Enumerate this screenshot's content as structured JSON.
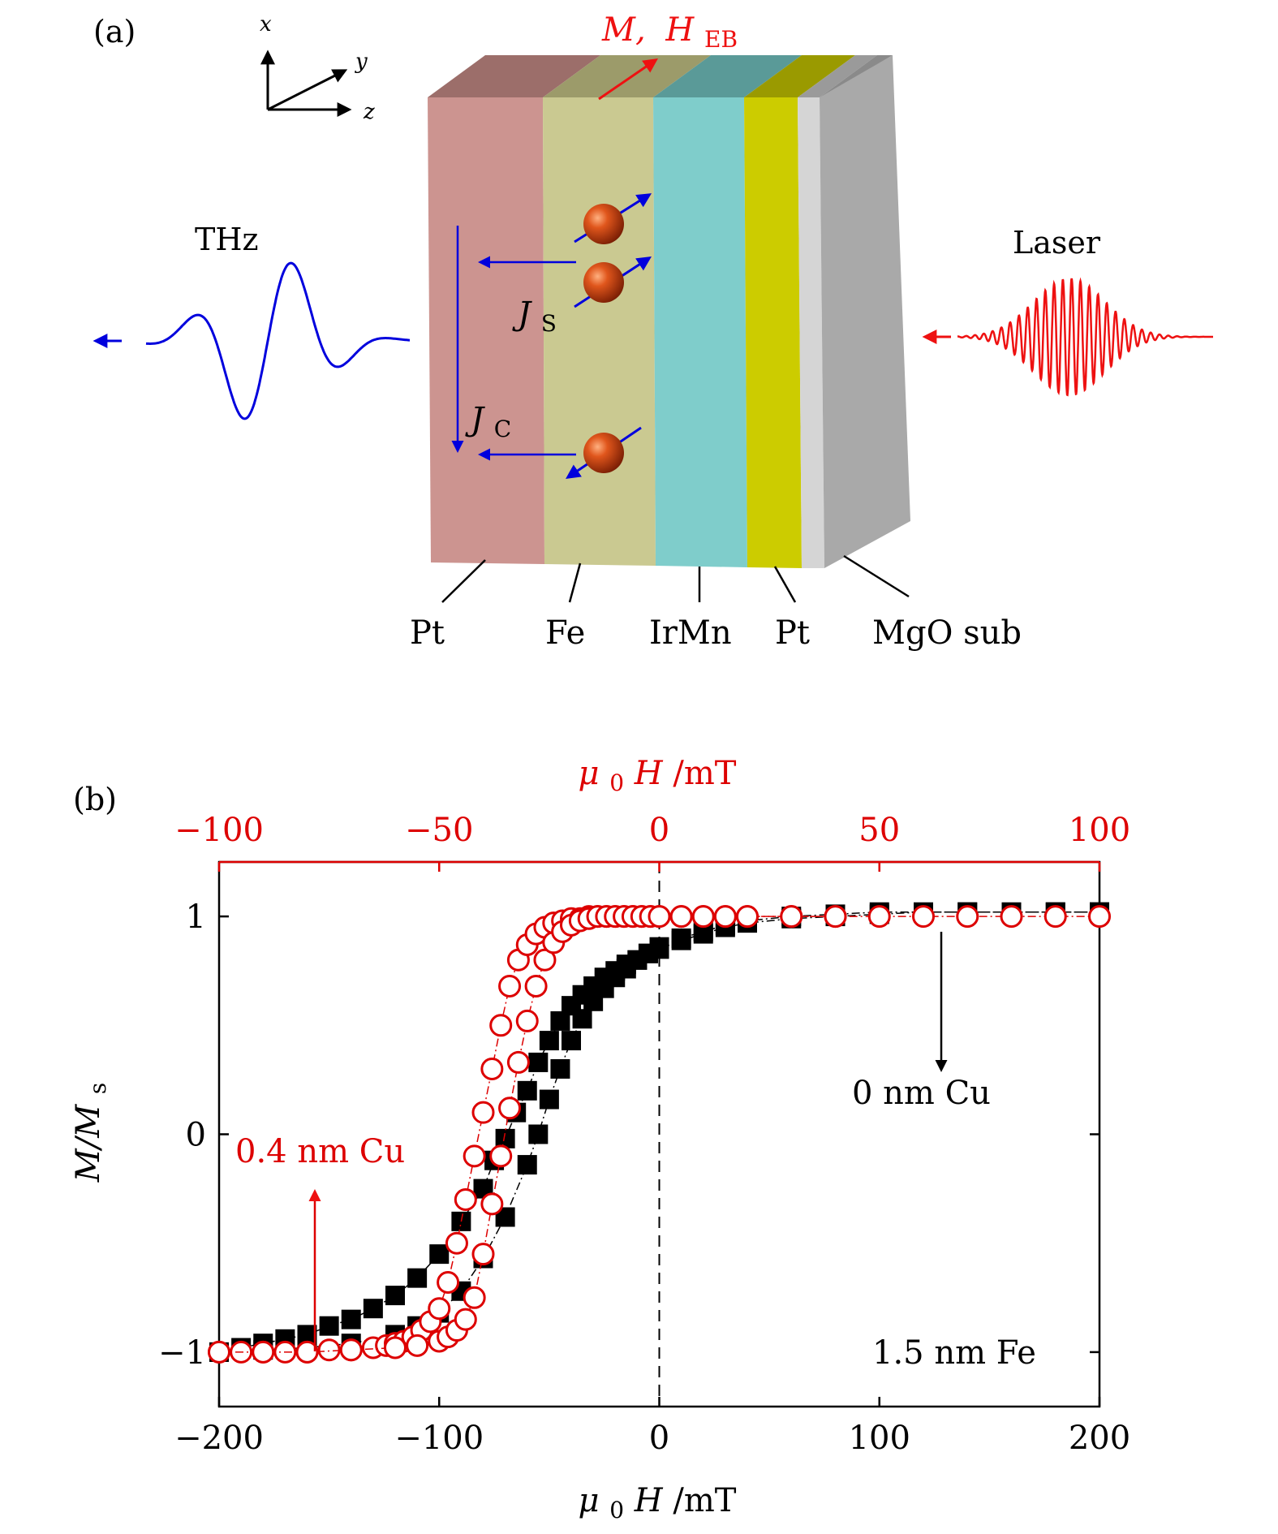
{
  "panel_a": {
    "label": "(a)",
    "axes": {
      "x": "x",
      "y": "y",
      "z": "z"
    },
    "top_label": {
      "m": "M,",
      "h": "H",
      "h_sub": "EB"
    },
    "thz_label": "THz",
    "laser_label": "Laser",
    "js_label": {
      "main": "J",
      "sub": "S"
    },
    "jc_label": {
      "main": "J",
      "sub": "C"
    },
    "layers": [
      {
        "name": "Pt",
        "color": "#cc9490"
      },
      {
        "name": "Fe",
        "color": "#cac991"
      },
      {
        "name": "IrMn",
        "color": "#7fcdcb"
      },
      {
        "name": "Pt",
        "color": "#cccc00"
      },
      {
        "name": "MgO sub",
        "color": "#a9a9a9"
      }
    ],
    "colors": {
      "thz": "#0000dd",
      "laser": "#ee1111",
      "magnetization": "#ee1111"
    }
  },
  "panel_b": {
    "label": "(b)",
    "chart_data": {
      "type": "scatter",
      "xlabel_bottom": {
        "pre": "μ",
        "sub": "0",
        "main": "H",
        "unit": "/mT"
      },
      "xlabel_top": {
        "pre": "μ",
        "sub": "0",
        "main": "H",
        "unit": "/mT"
      },
      "ylabel": {
        "main": "M/M",
        "sub": "s"
      },
      "bottom_axis": {
        "range": [
          -200,
          200
        ],
        "ticks": [
          "−200",
          "−100",
          "0",
          "100",
          "200"
        ]
      },
      "top_axis": {
        "range": [
          -100,
          100
        ],
        "ticks": [
          "−100",
          "−50",
          "0",
          "50",
          "100"
        ],
        "color": "#dd0000"
      },
      "y_axis": {
        "range": [
          -1.25,
          1.25
        ],
        "ticks": [
          "−1",
          "0",
          "1"
        ]
      },
      "annotation_fe": "1.5 nm Fe",
      "series": [
        {
          "name": "0 nm Cu",
          "axis": "bottom",
          "marker": "filled-square",
          "color": "#000000",
          "branches": [
            {
              "x": [
                -200,
                -190,
                -180,
                -170,
                -160,
                -150,
                -140,
                -130,
                -120,
                -110,
                -100,
                -90,
                -80,
                -75,
                -70,
                -65,
                -60,
                -55,
                -50,
                -45,
                -40,
                -35,
                -30,
                -25,
                -20,
                -15,
                -10,
                -5,
                0,
                10,
                20,
                30,
                40,
                60,
                80,
                100,
                120,
                140,
                160,
                180,
                200
              ],
              "y": [
                -1.0,
                -0.98,
                -0.96,
                -0.94,
                -0.92,
                -0.88,
                -0.85,
                -0.8,
                -0.74,
                -0.66,
                -0.55,
                -0.4,
                -0.25,
                -0.12,
                -0.02,
                0.1,
                0.2,
                0.33,
                0.43,
                0.52,
                0.59,
                0.64,
                0.68,
                0.72,
                0.75,
                0.78,
                0.8,
                0.83,
                0.85,
                0.89,
                0.92,
                0.95,
                0.97,
                0.99,
                1.0,
                1.01,
                1.02,
                1.02,
                1.02,
                1.02,
                1.02
              ]
            },
            {
              "x": [
                -200,
                -180,
                -160,
                -140,
                -120,
                -110,
                -100,
                -90,
                -80,
                -70,
                -60,
                -55,
                -50,
                -45,
                -40,
                -35,
                -30,
                -25,
                -20,
                -15,
                -10,
                -5,
                0,
                10,
                20,
                30,
                40,
                60,
                80,
                100,
                140,
                180,
                200
              ],
              "y": [
                -1.0,
                -0.99,
                -0.98,
                -0.96,
                -0.92,
                -0.88,
                -0.82,
                -0.72,
                -0.57,
                -0.38,
                -0.14,
                0.0,
                0.16,
                0.3,
                0.43,
                0.53,
                0.61,
                0.67,
                0.72,
                0.76,
                0.8,
                0.83,
                0.86,
                0.9,
                0.93,
                0.96,
                0.98,
                1.0,
                1.01,
                1.02,
                1.02,
                1.02,
                1.02
              ]
            }
          ]
        },
        {
          "name": "0.4 nm Cu",
          "axis": "top",
          "marker": "open-circle",
          "color": "#dd0000",
          "branches": [
            {
              "x": [
                -100,
                -95,
                -90,
                -85,
                -80,
                -75,
                -70,
                -65,
                -62,
                -60,
                -58,
                -56,
                -54,
                -52,
                -50,
                -48,
                -46,
                -44,
                -42,
                -40,
                -38,
                -36,
                -34,
                -32,
                -30,
                -28,
                -26,
                -24,
                -22,
                -20,
                -18,
                -16,
                -14,
                -12,
                -10,
                -8,
                -6,
                -4,
                -2,
                0,
                5,
                10,
                15,
                20,
                30,
                40,
                50,
                60,
                70,
                80,
                90,
                100
              ],
              "y": [
                -1.0,
                -1.0,
                -1.0,
                -1.0,
                -1.0,
                -0.99,
                -0.99,
                -0.98,
                -0.97,
                -0.96,
                -0.95,
                -0.93,
                -0.9,
                -0.86,
                -0.8,
                -0.68,
                -0.5,
                -0.3,
                -0.1,
                0.1,
                0.3,
                0.5,
                0.68,
                0.8,
                0.87,
                0.92,
                0.95,
                0.97,
                0.98,
                0.99,
                0.99,
                1.0,
                1.0,
                1.0,
                1.0,
                1.0,
                1.0,
                1.0,
                1.0,
                1.0,
                1.0,
                1.0,
                1.0,
                1.0,
                1.0,
                1.0,
                1.0,
                1.0,
                1.0,
                1.0,
                1.0,
                1.0
              ]
            },
            {
              "x": [
                -100,
                -90,
                -80,
                -70,
                -60,
                -55,
                -50,
                -48,
                -46,
                -44,
                -42,
                -40,
                -38,
                -36,
                -34,
                -32,
                -30,
                -28,
                -26,
                -24,
                -22,
                -20,
                -18,
                -16,
                -14,
                -12,
                -10,
                -8,
                -6,
                -4,
                -2,
                0,
                5,
                10,
                15,
                20,
                30,
                40
              ],
              "y": [
                -1.0,
                -1.0,
                -1.0,
                -0.99,
                -0.98,
                -0.97,
                -0.95,
                -0.93,
                -0.9,
                -0.85,
                -0.75,
                -0.55,
                -0.32,
                -0.1,
                0.12,
                0.33,
                0.52,
                0.68,
                0.8,
                0.88,
                0.93,
                0.96,
                0.98,
                0.99,
                1.0,
                1.0,
                1.0,
                1.0,
                1.0,
                1.0,
                1.0,
                1.0,
                1.0,
                1.0,
                1.0,
                1.0,
                1.0,
                1.0
              ]
            }
          ]
        }
      ],
      "annotations": [
        {
          "text": "0 nm Cu",
          "color": "#000000"
        },
        {
          "text": "0.4 nm Cu",
          "color": "#dd0000"
        }
      ]
    }
  }
}
